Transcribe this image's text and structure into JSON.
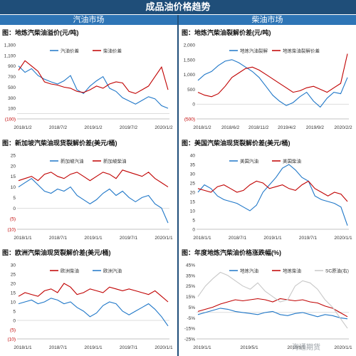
{
  "header": {
    "title": "成品油价格趋势",
    "left_section": "汽油市场",
    "right_section": "柴油市场"
  },
  "watermark": "海通期货",
  "colors": {
    "blue": "#1f77c8",
    "red": "#c00000",
    "gray": "#c8c8c8",
    "title_bg": "#1f4e79",
    "section_bg": "#2e75b6"
  },
  "chart_data": [
    {
      "type": "line",
      "title": "图：地炼汽柴油溢价(元/吨)",
      "xlabels": [
        "2018/1/2",
        "2018/7/2",
        "2019/1/2",
        "2019/7/2",
        "2020/1/2"
      ],
      "ylabels": [
        "1,300",
        "1,100",
        "900",
        "700",
        "500",
        "300",
        "100",
        "(100)"
      ],
      "ylim": [
        -100,
        1300
      ],
      "series": [
        {
          "name": "汽油价差",
          "color": "#1f77c8",
          "values": [
            900,
            780,
            850,
            720,
            650,
            600,
            560,
            620,
            720,
            450,
            380,
            520,
            620,
            700,
            480,
            420,
            300,
            240,
            180,
            250,
            320,
            280,
            150,
            100
          ]
        },
        {
          "name": "柴油价差",
          "color": "#c00000",
          "values": [
            820,
            1000,
            900,
            800,
            600,
            560,
            540,
            500,
            480,
            420,
            400,
            450,
            520,
            480,
            560,
            600,
            580,
            420,
            380,
            450,
            520,
            700,
            880,
            450
          ]
        }
      ]
    },
    {
      "type": "line",
      "title": "图：地炼汽柴油裂解价差(元/吨)",
      "xlabels": [
        "2018/1/2",
        "2018/6/2",
        "2018/11/2",
        "2019/4/2",
        "2019/9/2",
        "2020/2/2"
      ],
      "ylabels": [
        "2,000",
        "1,500",
        "1,000",
        "500",
        "0",
        "(500)"
      ],
      "ylim": [
        -500,
        2000
      ],
      "series": [
        {
          "name": "地炼汽油裂解",
          "color": "#1f77c8",
          "values": [
            800,
            1000,
            1100,
            1300,
            1450,
            1500,
            1400,
            1250,
            1100,
            900,
            600,
            300,
            100,
            -50,
            50,
            250,
            400,
            100,
            -100,
            200,
            400,
            350,
            900
          ]
        },
        {
          "name": "地炼柴油裂解价差",
          "color": "#c00000",
          "values": [
            400,
            300,
            250,
            350,
            600,
            900,
            1050,
            1200,
            1250,
            1150,
            1000,
            850,
            700,
            550,
            400,
            450,
            550,
            600,
            500,
            400,
            550,
            700,
            1700
          ]
        }
      ]
    },
    {
      "type": "line",
      "title": "图：新加坡汽柴油现货裂解价差(美元/桶)",
      "xlabels": [
        "2018/1/1",
        "2018/7/1",
        "2019/1/1",
        "2019/7/1",
        "2020/1/1"
      ],
      "ylabels": [
        "25",
        "20",
        "15",
        "10",
        "5",
        "0",
        "(5)",
        "(10)"
      ],
      "ylim": [
        -10,
        25
      ],
      "series": [
        {
          "name": "新加坡汽油",
          "color": "#1f77c8",
          "values": [
            10,
            12,
            14,
            11,
            8,
            7,
            9,
            8,
            10,
            6,
            4,
            2,
            4,
            7,
            9,
            6,
            8,
            5,
            3,
            5,
            6,
            2,
            0,
            -7
          ]
        },
        {
          "name": "新加坡柴油",
          "color": "#c00000",
          "values": [
            13,
            14,
            15,
            13,
            16,
            17,
            15,
            14,
            16,
            17,
            15,
            13,
            15,
            17,
            16,
            14,
            18,
            17,
            16,
            15,
            17,
            14,
            12,
            10
          ]
        }
      ]
    },
    {
      "type": "line",
      "title": "图：美国汽柴油现货裂解价差(美元/桶)",
      "xlabels": [
        "2018/1/1",
        "2018/7/1",
        "2019/1/1",
        "2019/7/1",
        "2020/1/1"
      ],
      "ylabels": [
        "40",
        "35",
        "30",
        "25",
        "20",
        "15",
        "10",
        "5",
        "0"
      ],
      "ylim": [
        0,
        40
      ],
      "series": [
        {
          "name": "美国汽油",
          "color": "#1f77c8",
          "values": [
            20,
            24,
            22,
            18,
            16,
            15,
            14,
            12,
            10,
            13,
            20,
            24,
            28,
            33,
            35,
            32,
            28,
            26,
            18,
            16,
            15,
            14,
            12,
            2
          ]
        },
        {
          "name": "美国柴油",
          "color": "#c00000",
          "values": [
            22,
            21,
            20,
            23,
            24,
            22,
            20,
            21,
            24,
            26,
            25,
            22,
            23,
            24,
            22,
            21,
            24,
            26,
            22,
            20,
            18,
            20,
            19,
            15
          ]
        }
      ]
    },
    {
      "type": "line",
      "title": "图：欧洲汽柴油现货裂解价差(美元/桶)",
      "xlabels": [
        "2018/1/1",
        "2018/7/1",
        "2019/1/1",
        "2019/7/1",
        "2020/1/1"
      ],
      "ylabels": [
        "30",
        "25",
        "20",
        "15",
        "10",
        "5",
        "0",
        "(5)",
        "(10)"
      ],
      "ylim": [
        -10,
        30
      ],
      "series": [
        {
          "name": "欧洲柴油",
          "color": "#c00000",
          "values": [
            13,
            15,
            14,
            13,
            16,
            17,
            15,
            20,
            18,
            14,
            15,
            17,
            16,
            15,
            18,
            17,
            16,
            17,
            16,
            15,
            14,
            16,
            13,
            10
          ]
        },
        {
          "name": "欧洲汽油",
          "color": "#1f77c8",
          "values": [
            9,
            10,
            11,
            9,
            10,
            12,
            11,
            9,
            10,
            7,
            5,
            2,
            4,
            8,
            10,
            9,
            5,
            3,
            5,
            7,
            9,
            6,
            2,
            -3
          ]
        }
      ]
    },
    {
      "type": "line",
      "title": "图：年度地炼汽柴油价格涨跌幅(%)",
      "xlabels": [
        "2019/1/1",
        "2019/5/1",
        "2019/9/1",
        "2020/1/1"
      ],
      "ylabels": [
        "45%",
        "35%",
        "25%",
        "15%",
        "5%",
        "-5%",
        "-15%",
        "-25%"
      ],
      "ylim": [
        -25,
        45
      ],
      "series": [
        {
          "name": "地炼汽油",
          "color": "#1f77c8",
          "values": [
            -2,
            0,
            2,
            4,
            3,
            1,
            0,
            -1,
            -2,
            0,
            1,
            -2,
            -3,
            -1,
            0,
            -2,
            -4,
            -2,
            -3,
            -5,
            -6
          ]
        },
        {
          "name": "地炼柴油",
          "color": "#c00000",
          "values": [
            1,
            3,
            5,
            8,
            10,
            12,
            11,
            12,
            13,
            12,
            10,
            13,
            12,
            11,
            12,
            10,
            9,
            6,
            4,
            0,
            -4
          ]
        },
        {
          "name": "SC原油(右)",
          "color": "#c8c8c8",
          "values": [
            15,
            25,
            32,
            38,
            35,
            30,
            25,
            22,
            28,
            20,
            15,
            10,
            12,
            25,
            30,
            28,
            22,
            12,
            5,
            -5,
            -15
          ]
        }
      ]
    }
  ]
}
